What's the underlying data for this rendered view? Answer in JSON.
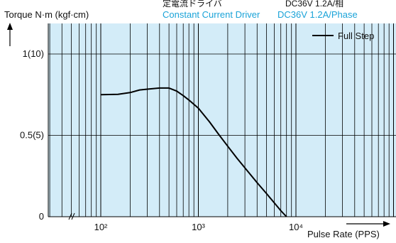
{
  "header": {
    "driver_jp": "定電流ドライバ",
    "driver_en": "Constant Current Driver",
    "spec_jp": "DC36V 1.2A/相",
    "spec_en": "DC36V 1.2A/Phase"
  },
  "colors": {
    "plot_bg": "#d3ecf8",
    "accent_text": "#1aa3d8",
    "curve": "#000000",
    "grid": "#000000"
  },
  "chart_data": {
    "type": "line",
    "title": "",
    "ylabel": "Torque N·m (kgf·cm)",
    "xlabel": "Pulse Rate (PPS)",
    "x_scale": "log",
    "xlim": [
      30,
      50000
    ],
    "ylim": [
      0,
      1.2
    ],
    "grid": true,
    "legend_position": "top-right",
    "x_ticks": [
      {
        "value": 100,
        "label": "10²"
      },
      {
        "value": 1000,
        "label": "10³"
      },
      {
        "value": 10000,
        "label": "10⁴"
      }
    ],
    "y_ticks": [
      {
        "value": 0,
        "label": "0"
      },
      {
        "value": 0.5,
        "label": "0.5(5)"
      },
      {
        "value": 1.0,
        "label": "1(10)"
      }
    ],
    "series": [
      {
        "name": "Full Step",
        "x": [
          100,
          150,
          200,
          250,
          300,
          400,
          500,
          600,
          700,
          800,
          1000,
          1300,
          1600,
          2000,
          2500,
          3000,
          4000,
          5000,
          6000,
          7000,
          8000
        ],
        "y": [
          0.75,
          0.752,
          0.763,
          0.779,
          0.784,
          0.791,
          0.791,
          0.772,
          0.744,
          0.717,
          0.667,
          0.583,
          0.509,
          0.433,
          0.358,
          0.3,
          0.209,
          0.142,
          0.085,
          0.037,
          0.0
        ]
      }
    ]
  }
}
